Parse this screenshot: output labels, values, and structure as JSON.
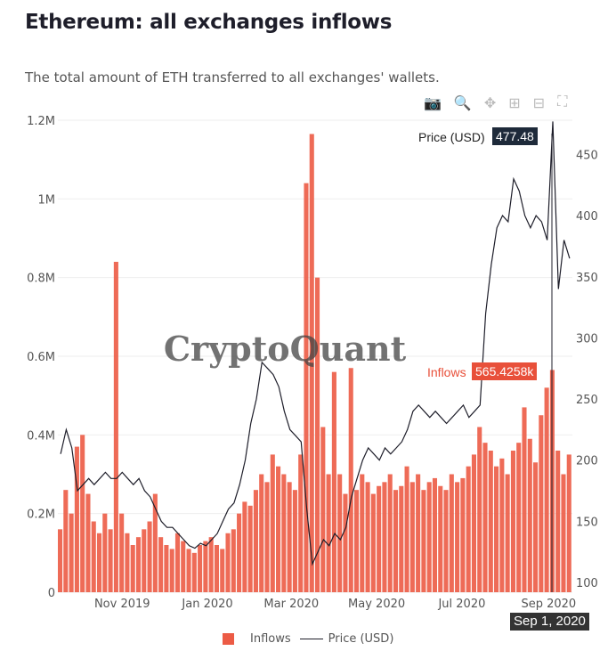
{
  "header": {
    "title": "Ethereum: all exchanges inflows",
    "subtitle": "The total amount of ETH transferred to all exchanges' wallets."
  },
  "modebar": [
    {
      "icon": "camera-icon",
      "glyph": "📷"
    },
    {
      "icon": "zoom-icon",
      "glyph": "🔍"
    },
    {
      "icon": "pan-icon",
      "glyph": "✥"
    },
    {
      "icon": "zoom-in-icon",
      "glyph": "⊞"
    },
    {
      "icon": "zoom-out-icon",
      "glyph": "⊟"
    },
    {
      "icon": "autoscale-icon",
      "glyph": "⛶"
    }
  ],
  "watermark": "CryptoQuant",
  "tooltips": {
    "price_label": "Price (USD)",
    "price_value": "477.48",
    "inflows_label": "Inflows",
    "inflows_value": "565.4258k",
    "date": "Sep 1, 2020"
  },
  "colors": {
    "bar": "#ec5b45",
    "line": "#1e1e2a",
    "price_tip": "#1e2a3a",
    "inflow_tip": "#e8503a",
    "date_tip": "#333"
  },
  "chart_data": {
    "type": "bar+line",
    "start_date": "2019-09-16",
    "step_days": 4,
    "end_day": 368,
    "x_ticks": [
      {
        "label": "Nov 2019",
        "day": 46
      },
      {
        "label": "Jan 2020",
        "day": 107
      },
      {
        "label": "Mar 2020",
        "day": 167
      },
      {
        "label": "May 2020",
        "day": 228
      },
      {
        "label": "Jul 2020",
        "day": 289
      },
      {
        "label": "Sep 2020",
        "day": 351
      }
    ],
    "y_left": {
      "range": [
        0,
        1200000
      ],
      "ticks": [
        {
          "v": 0,
          "label": "0"
        },
        {
          "v": 200000,
          "label": "0.2M"
        },
        {
          "v": 400000,
          "label": "0.4M"
        },
        {
          "v": 600000,
          "label": "0.6M"
        },
        {
          "v": 800000,
          "label": "0.8M"
        },
        {
          "v": 1000000,
          "label": "1M"
        },
        {
          "v": 1200000,
          "label": "1.2M"
        }
      ]
    },
    "y_right": {
      "range": [
        92,
        478
      ],
      "ticks": [
        100,
        150,
        200,
        250,
        300,
        350,
        400,
        450
      ]
    },
    "series": [
      {
        "name": "Inflows",
        "unit": "k ETH",
        "values": [
          160,
          260,
          200,
          370,
          400,
          250,
          180,
          150,
          200,
          160,
          840,
          200,
          150,
          120,
          140,
          160,
          180,
          250,
          140,
          120,
          110,
          150,
          130,
          110,
          100,
          120,
          130,
          140,
          120,
          110,
          150,
          160,
          200,
          230,
          220,
          260,
          300,
          280,
          350,
          320,
          300,
          280,
          260,
          350,
          1040,
          1165,
          800,
          420,
          300,
          560,
          300,
          250,
          570,
          260,
          300,
          280,
          250,
          270,
          280,
          300,
          260,
          270,
          320,
          280,
          300,
          260,
          280,
          290,
          270,
          260,
          300,
          280,
          290,
          320,
          350,
          420,
          380,
          360,
          320,
          340,
          300,
          360,
          380,
          470,
          390,
          330,
          450,
          520,
          565,
          360,
          300,
          350
        ]
      },
      {
        "name": "Price (USD)",
        "values": [
          205,
          225,
          210,
          175,
          180,
          185,
          180,
          185,
          190,
          185,
          185,
          190,
          185,
          180,
          185,
          175,
          170,
          160,
          150,
          145,
          145,
          140,
          135,
          130,
          128,
          132,
          130,
          135,
          140,
          150,
          160,
          165,
          180,
          200,
          230,
          250,
          280,
          275,
          270,
          260,
          240,
          225,
          220,
          215,
          160,
          115,
          125,
          135,
          130,
          140,
          135,
          145,
          170,
          185,
          200,
          210,
          205,
          200,
          210,
          205,
          210,
          215,
          225,
          240,
          245,
          240,
          235,
          240,
          235,
          230,
          235,
          240,
          245,
          235,
          240,
          245,
          320,
          360,
          390,
          400,
          395,
          430,
          420,
          400,
          390,
          400,
          395,
          380,
          477,
          340,
          380,
          365
        ]
      }
    ],
    "legend": [
      "Inflows",
      "Price (USD)"
    ]
  }
}
